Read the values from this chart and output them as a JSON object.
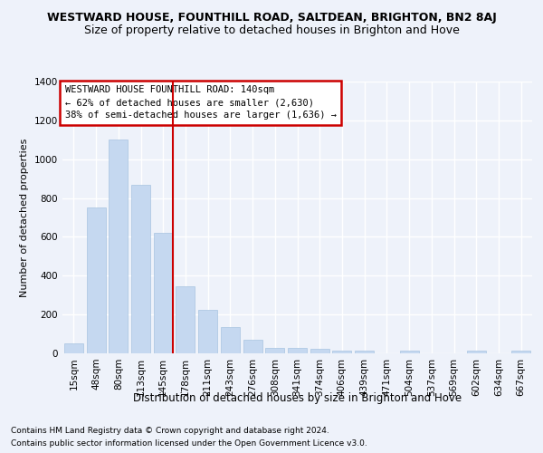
{
  "title": "WESTWARD HOUSE, FOUNTHILL ROAD, SALTDEAN, BRIGHTON, BN2 8AJ",
  "subtitle": "Size of property relative to detached houses in Brighton and Hove",
  "xlabel": "Distribution of detached houses by size in Brighton and Hove",
  "ylabel": "Number of detached properties",
  "bar_color": "#c5d8f0",
  "bar_edge_color": "#a8c4e0",
  "vline_color": "#cc0000",
  "vline_bar_index": 4,
  "annotation_line1": "WESTWARD HOUSE FOUNTHILL ROAD: 140sqm",
  "annotation_line2": "← 62% of detached houses are smaller (2,630)",
  "annotation_line3": "38% of semi-detached houses are larger (1,636) →",
  "annotation_box_edgecolor": "#cc0000",
  "categories": [
    "15sqm",
    "48sqm",
    "80sqm",
    "113sqm",
    "145sqm",
    "178sqm",
    "211sqm",
    "243sqm",
    "276sqm",
    "308sqm",
    "341sqm",
    "374sqm",
    "406sqm",
    "439sqm",
    "471sqm",
    "504sqm",
    "537sqm",
    "569sqm",
    "602sqm",
    "634sqm",
    "667sqm"
  ],
  "values": [
    50,
    750,
    1100,
    870,
    620,
    345,
    222,
    135,
    68,
    30,
    30,
    22,
    12,
    12,
    0,
    12,
    0,
    0,
    12,
    0,
    12
  ],
  "ylim": [
    0,
    1400
  ],
  "yticks": [
    0,
    200,
    400,
    600,
    800,
    1000,
    1200,
    1400
  ],
  "footer_line1": "Contains HM Land Registry data © Crown copyright and database right 2024.",
  "footer_line2": "Contains public sector information licensed under the Open Government Licence v3.0.",
  "background_color": "#eef2fa",
  "plot_bg_color": "#eef2fa",
  "title_fontsize": 9,
  "subtitle_fontsize": 9,
  "ylabel_fontsize": 8,
  "xlabel_fontsize": 8.5,
  "tick_fontsize": 7.5,
  "footer_fontsize": 6.5
}
